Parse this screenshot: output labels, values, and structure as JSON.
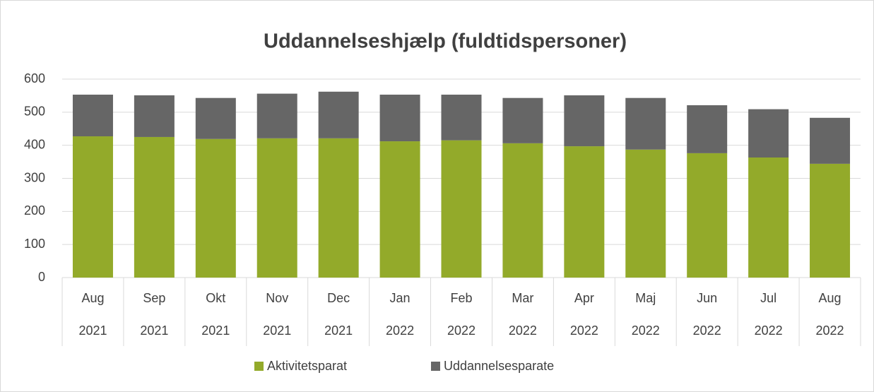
{
  "chart_data": {
    "type": "stacked_bar",
    "title": "Uddannelseshjælp (fuldtidspersoner)",
    "categories": [
      [
        "Aug",
        "2021"
      ],
      [
        "Sep",
        "2021"
      ],
      [
        "Okt",
        "2021"
      ],
      [
        "Nov",
        "2021"
      ],
      [
        "Dec",
        "2021"
      ],
      [
        "Jan",
        "2022"
      ],
      [
        "Feb",
        "2022"
      ],
      [
        "Mar",
        "2022"
      ],
      [
        "Apr",
        "2022"
      ],
      [
        "Maj",
        "2022"
      ],
      [
        "Jun",
        "2022"
      ],
      [
        "Jul",
        "2022"
      ],
      [
        "Aug",
        "2022"
      ]
    ],
    "series": [
      {
        "name": "Aktivitetsparat",
        "color": "#93aa2a",
        "values": [
          427,
          425,
          419,
          421,
          421,
          412,
          415,
          406,
          397,
          387,
          376,
          363,
          344
        ]
      },
      {
        "name": "Uddannelsesparate",
        "color": "#666666",
        "values": [
          126,
          126,
          124,
          135,
          141,
          141,
          138,
          137,
          154,
          156,
          145,
          146,
          139
        ]
      }
    ],
    "ylim": [
      0,
      600
    ],
    "yticks": [
      0,
      100,
      200,
      300,
      400,
      500,
      600
    ],
    "grid": true,
    "legend": "bottom"
  }
}
